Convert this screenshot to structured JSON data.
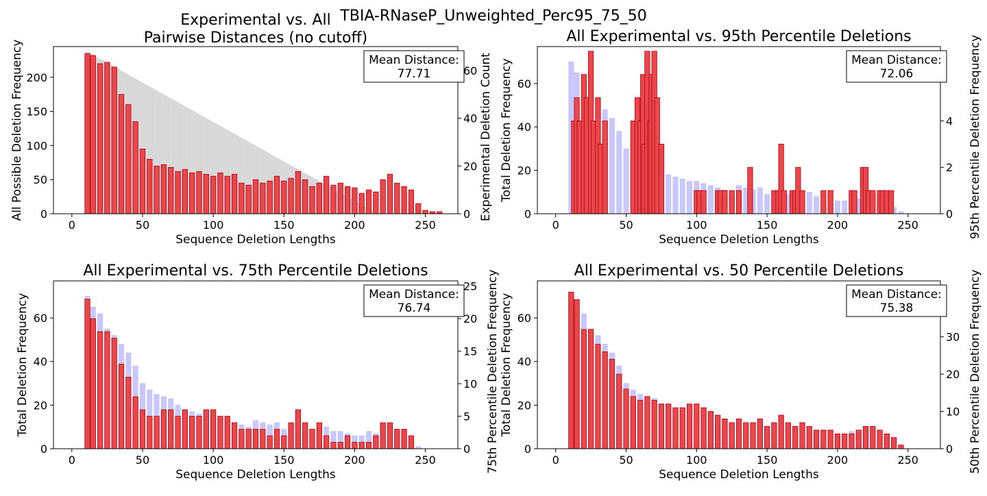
{
  "figure": {
    "suptitle": "TBIA-RNaseP_Unweighted_Perc95_75_50"
  },
  "colors": {
    "red_bars": "#e8474c",
    "red_edge": "#b00010",
    "blue_bars": "#c8c8ff",
    "gray_fill": "#dcdcdc",
    "axis": "#000000"
  },
  "chart_data": [
    {
      "type": "bar",
      "title_lines": [
        "Experimental vs. All",
        "Pairwise Distances (no cutoff)"
      ],
      "xlabel": "Sequence Deletion Lengths",
      "ylabel_left": "All Possible Deletion Frequency",
      "ylabel_right": "Experimental Deletion Count",
      "xlim": [
        -13,
        273
      ],
      "ylim_left": [
        0,
        245
      ],
      "ylim_right": [
        0,
        70
      ],
      "xticks": [
        0,
        50,
        100,
        150,
        200,
        250
      ],
      "yticks_left": [
        0,
        50,
        100,
        150,
        200
      ],
      "yticks_right": [
        0,
        20,
        40,
        60
      ],
      "background_series": {
        "name": "",
        "color": "#dcdcdc",
        "start_x": 11,
        "end_x": 216,
        "start_y": 237,
        "end_y": 0
      },
      "series": {
        "name": "",
        "color": "#e8474c",
        "x": [
          11,
          15,
          20,
          25,
          30,
          35,
          40,
          45,
          50,
          55,
          60,
          65,
          70,
          75,
          80,
          85,
          90,
          95,
          100,
          105,
          110,
          115,
          120,
          125,
          130,
          135,
          140,
          145,
          150,
          155,
          160,
          165,
          170,
          175,
          180,
          185,
          190,
          195,
          200,
          205,
          210,
          215,
          220,
          225,
          230,
          235,
          240,
          245,
          250,
          255,
          260
        ],
        "y": [
          235,
          232,
          220,
          222,
          215,
          175,
          160,
          135,
          95,
          80,
          70,
          72,
          68,
          62,
          65,
          60,
          62,
          58,
          55,
          60,
          55,
          58,
          45,
          42,
          50,
          45,
          48,
          55,
          48,
          52,
          62,
          50,
          40,
          45,
          55,
          42,
          45,
          40,
          38,
          30,
          35,
          32,
          50,
          58,
          45,
          40,
          35,
          15,
          5,
          3,
          3
        ]
      },
      "mean_distance_label": "Mean Distance:",
      "mean_distance_value": "77.71"
    },
    {
      "type": "bar",
      "title_lines": [
        "All Experimental vs. 95th Percentile Deletions"
      ],
      "xlabel": "Sequence Deletion Lengths",
      "ylabel_left": "Total Deletion Frequency",
      "ylabel_right": "95th Percentile Deletion Frequency",
      "xlim": [
        -13,
        273
      ],
      "ylim_left": [
        0,
        77
      ],
      "ylim_right": [
        0,
        7.2
      ],
      "xticks": [
        0,
        50,
        100,
        150,
        200,
        250
      ],
      "yticks_left": [
        0,
        20,
        40,
        60
      ],
      "yticks_right": [
        0,
        2,
        4
      ],
      "background_series": {
        "name": "",
        "color": "#c8c8ff",
        "x": [
          11,
          15,
          20,
          25,
          30,
          35,
          40,
          45,
          50,
          55,
          60,
          65,
          70,
          75,
          80,
          85,
          90,
          95,
          100,
          105,
          110,
          115,
          120,
          125,
          130,
          135,
          140,
          145,
          150,
          155,
          160,
          165,
          170,
          175,
          180,
          185,
          190,
          195,
          200,
          205,
          210,
          215,
          220,
          225,
          230,
          235,
          240,
          245
        ],
        "y": [
          70,
          65,
          62,
          55,
          52,
          48,
          44,
          38,
          30,
          27,
          25,
          24,
          23,
          20,
          18,
          17,
          16,
          15,
          15,
          14,
          13,
          12,
          11,
          10,
          13,
          12,
          11,
          12,
          9,
          10,
          13,
          9,
          8,
          9,
          10,
          8,
          8,
          7,
          6,
          6,
          8,
          7,
          10,
          9,
          6,
          5,
          3,
          1
        ]
      },
      "series": {
        "name": "",
        "color": "#e8474c",
        "x": [
          13,
          15,
          17,
          20,
          22,
          25,
          27,
          30,
          32,
          35,
          55,
          58,
          60,
          62,
          63,
          65,
          67,
          68,
          70,
          72,
          75,
          100,
          102,
          105,
          115,
          117,
          120,
          125,
          130,
          138,
          155,
          158,
          160,
          162,
          168,
          170,
          172,
          175,
          190,
          195,
          210,
          212,
          218,
          220,
          222,
          225,
          230,
          232,
          235,
          238
        ],
        "y": [
          4,
          5,
          4,
          6,
          5,
          7,
          4,
          5,
          3,
          4,
          4,
          5,
          4,
          6,
          3,
          7,
          4,
          6,
          7,
          5,
          3,
          1,
          1,
          1,
          1,
          1,
          1,
          1,
          1,
          2,
          1,
          1,
          3,
          1,
          1,
          1,
          2,
          1,
          1,
          1,
          1,
          1,
          2,
          2,
          1,
          1,
          1,
          1,
          1,
          1
        ]
      },
      "mean_distance_label": "Mean Distance:",
      "mean_distance_value": "72.06"
    },
    {
      "type": "bar",
      "title_lines": [
        "All Experimental vs. 75th Percentile Deletions"
      ],
      "xlabel": "Sequence Deletion Lengths",
      "ylabel_left": "Total Deletion Frequency",
      "ylabel_right": "75th Percentile Deletion Frequency",
      "xlim": [
        -13,
        273
      ],
      "ylim_left": [
        0,
        77
      ],
      "ylim_right": [
        0,
        25.8
      ],
      "xticks": [
        0,
        50,
        100,
        150,
        200,
        250
      ],
      "yticks_left": [
        0,
        20,
        40,
        60
      ],
      "yticks_right": [
        0,
        5,
        10,
        15,
        20,
        25
      ],
      "background_series": {
        "name": "",
        "color": "#c8c8ff",
        "x": [
          11,
          15,
          20,
          25,
          30,
          35,
          40,
          45,
          50,
          55,
          60,
          65,
          70,
          75,
          80,
          85,
          90,
          95,
          100,
          105,
          110,
          115,
          120,
          125,
          130,
          135,
          140,
          145,
          150,
          155,
          160,
          165,
          170,
          175,
          180,
          185,
          190,
          195,
          200,
          205,
          210,
          215,
          220,
          225,
          230,
          235,
          240,
          245
        ],
        "y": [
          70,
          65,
          62,
          55,
          52,
          48,
          44,
          38,
          30,
          27,
          25,
          24,
          23,
          20,
          18,
          17,
          16,
          15,
          15,
          14,
          13,
          12,
          11,
          10,
          13,
          12,
          11,
          12,
          9,
          10,
          13,
          9,
          8,
          9,
          10,
          8,
          8,
          7,
          6,
          6,
          8,
          7,
          10,
          9,
          6,
          5,
          3,
          1
        ]
      },
      "series": {
        "name": "",
        "color": "#e8474c",
        "x": [
          11,
          15,
          20,
          25,
          30,
          35,
          40,
          45,
          50,
          55,
          60,
          65,
          70,
          75,
          80,
          85,
          90,
          95,
          100,
          105,
          110,
          115,
          120,
          125,
          130,
          135,
          140,
          145,
          150,
          155,
          160,
          165,
          170,
          175,
          180,
          185,
          190,
          195,
          200,
          205,
          210,
          215,
          220,
          225,
          230,
          235,
          240,
          245
        ],
        "y": [
          23,
          20,
          18,
          18,
          17,
          13,
          11,
          8,
          6,
          5,
          5,
          6,
          6,
          5,
          6,
          5,
          5,
          6,
          6,
          5,
          5,
          4,
          3,
          3,
          3,
          3,
          2,
          3,
          2,
          4,
          6,
          4,
          3,
          4,
          2,
          1,
          1,
          2,
          1,
          1,
          1,
          2,
          4,
          4,
          3,
          3,
          2,
          0
        ]
      },
      "mean_distance_label": "Mean Distance:",
      "mean_distance_value": "76.74"
    },
    {
      "type": "bar",
      "title_lines": [
        "All Experimental vs. 50 Percentile Deletions"
      ],
      "xlabel": "Sequence Deletion Lengths",
      "ylabel_left": "Total Deletion Frequency",
      "ylabel_right": "50th Percentile Deletion Frequency",
      "xlim": [
        -13,
        273
      ],
      "ylim_left": [
        0,
        77
      ],
      "ylim_right": [
        0,
        45
      ],
      "xticks": [
        0,
        50,
        100,
        150,
        200,
        250
      ],
      "yticks_left": [
        0,
        20,
        40,
        60
      ],
      "yticks_right": [
        0,
        10,
        20,
        30
      ],
      "background_series": {
        "name": "",
        "color": "#c8c8ff",
        "x": [
          11,
          15,
          20,
          25,
          30,
          35,
          40,
          45,
          50,
          55,
          60,
          65,
          70,
          75,
          80,
          85,
          90,
          95,
          100,
          105,
          110,
          115,
          120,
          125,
          130,
          135,
          140,
          145,
          150,
          155,
          160,
          165,
          170,
          175,
          180,
          185,
          190,
          195,
          200,
          205,
          210,
          215,
          220,
          225,
          230,
          235,
          240,
          245
        ],
        "y": [
          70,
          65,
          62,
          55,
          52,
          48,
          44,
          38,
          30,
          27,
          25,
          24,
          23,
          20,
          18,
          17,
          16,
          15,
          15,
          14,
          13,
          12,
          11,
          10,
          13,
          12,
          11,
          12,
          9,
          10,
          13,
          9,
          8,
          9,
          10,
          8,
          8,
          7,
          6,
          6,
          8,
          7,
          10,
          9,
          6,
          5,
          3,
          1
        ]
      },
      "series": {
        "name": "",
        "color": "#e8474c",
        "x": [
          11,
          15,
          20,
          25,
          30,
          35,
          40,
          45,
          50,
          55,
          60,
          65,
          70,
          75,
          80,
          85,
          90,
          95,
          100,
          105,
          110,
          115,
          120,
          125,
          130,
          135,
          140,
          145,
          150,
          155,
          160,
          165,
          170,
          175,
          180,
          185,
          190,
          195,
          200,
          205,
          210,
          215,
          220,
          225,
          230,
          235,
          240,
          245
        ],
        "y": [
          42,
          40,
          32,
          32,
          28,
          26,
          24,
          20,
          16,
          14,
          13,
          14,
          13,
          12,
          12,
          11,
          11,
          12,
          12,
          11,
          10,
          9,
          8,
          7,
          8,
          7,
          7,
          8,
          6,
          7,
          9,
          7,
          6,
          7,
          6,
          5,
          5,
          5,
          4,
          4,
          4,
          5,
          6,
          6,
          5,
          4,
          3,
          1
        ]
      },
      "mean_distance_label": "Mean Distance:",
      "mean_distance_value": "75.38"
    }
  ]
}
